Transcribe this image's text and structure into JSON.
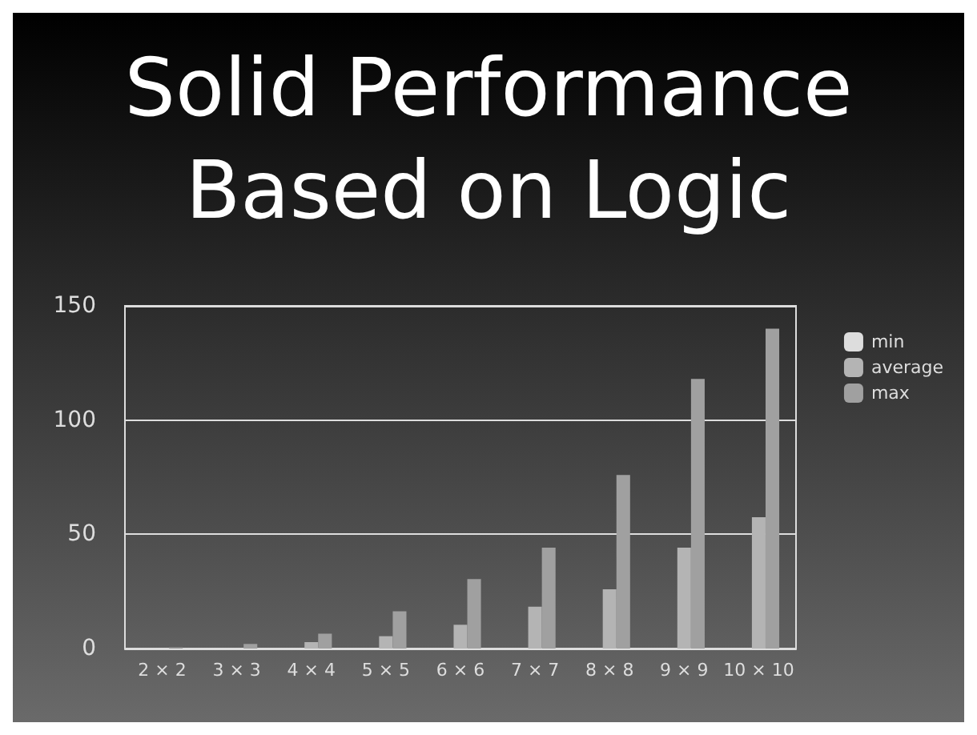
{
  "chart_data": {
    "type": "bar",
    "title": "Solid Performance\nBased on Logic",
    "categories": [
      "2 × 2",
      "3 × 3",
      "4 × 4",
      "5 × 5",
      "6 × 6",
      "7 × 7",
      "8 × 8",
      "9 × 9",
      "10 × 10"
    ],
    "series": [
      {
        "name": "min",
        "color": "#dddddd",
        "values": [
          0,
          0,
          0,
          0,
          0,
          0,
          0,
          0,
          0
        ]
      },
      {
        "name": "average",
        "color": "#b4b4b4",
        "values": [
          0,
          0,
          2.8,
          5.4,
          10.4,
          18.3,
          25.9,
          44.2,
          57.5
        ]
      },
      {
        "name": "max",
        "color": "#a0a0a0",
        "values": [
          0.5,
          2,
          6.5,
          16.3,
          30.4,
          44.2,
          76,
          118,
          140
        ]
      }
    ],
    "ylim": [
      0,
      150
    ],
    "yticks": [
      0,
      50,
      100,
      150
    ],
    "grid": "y",
    "legend": "right"
  }
}
